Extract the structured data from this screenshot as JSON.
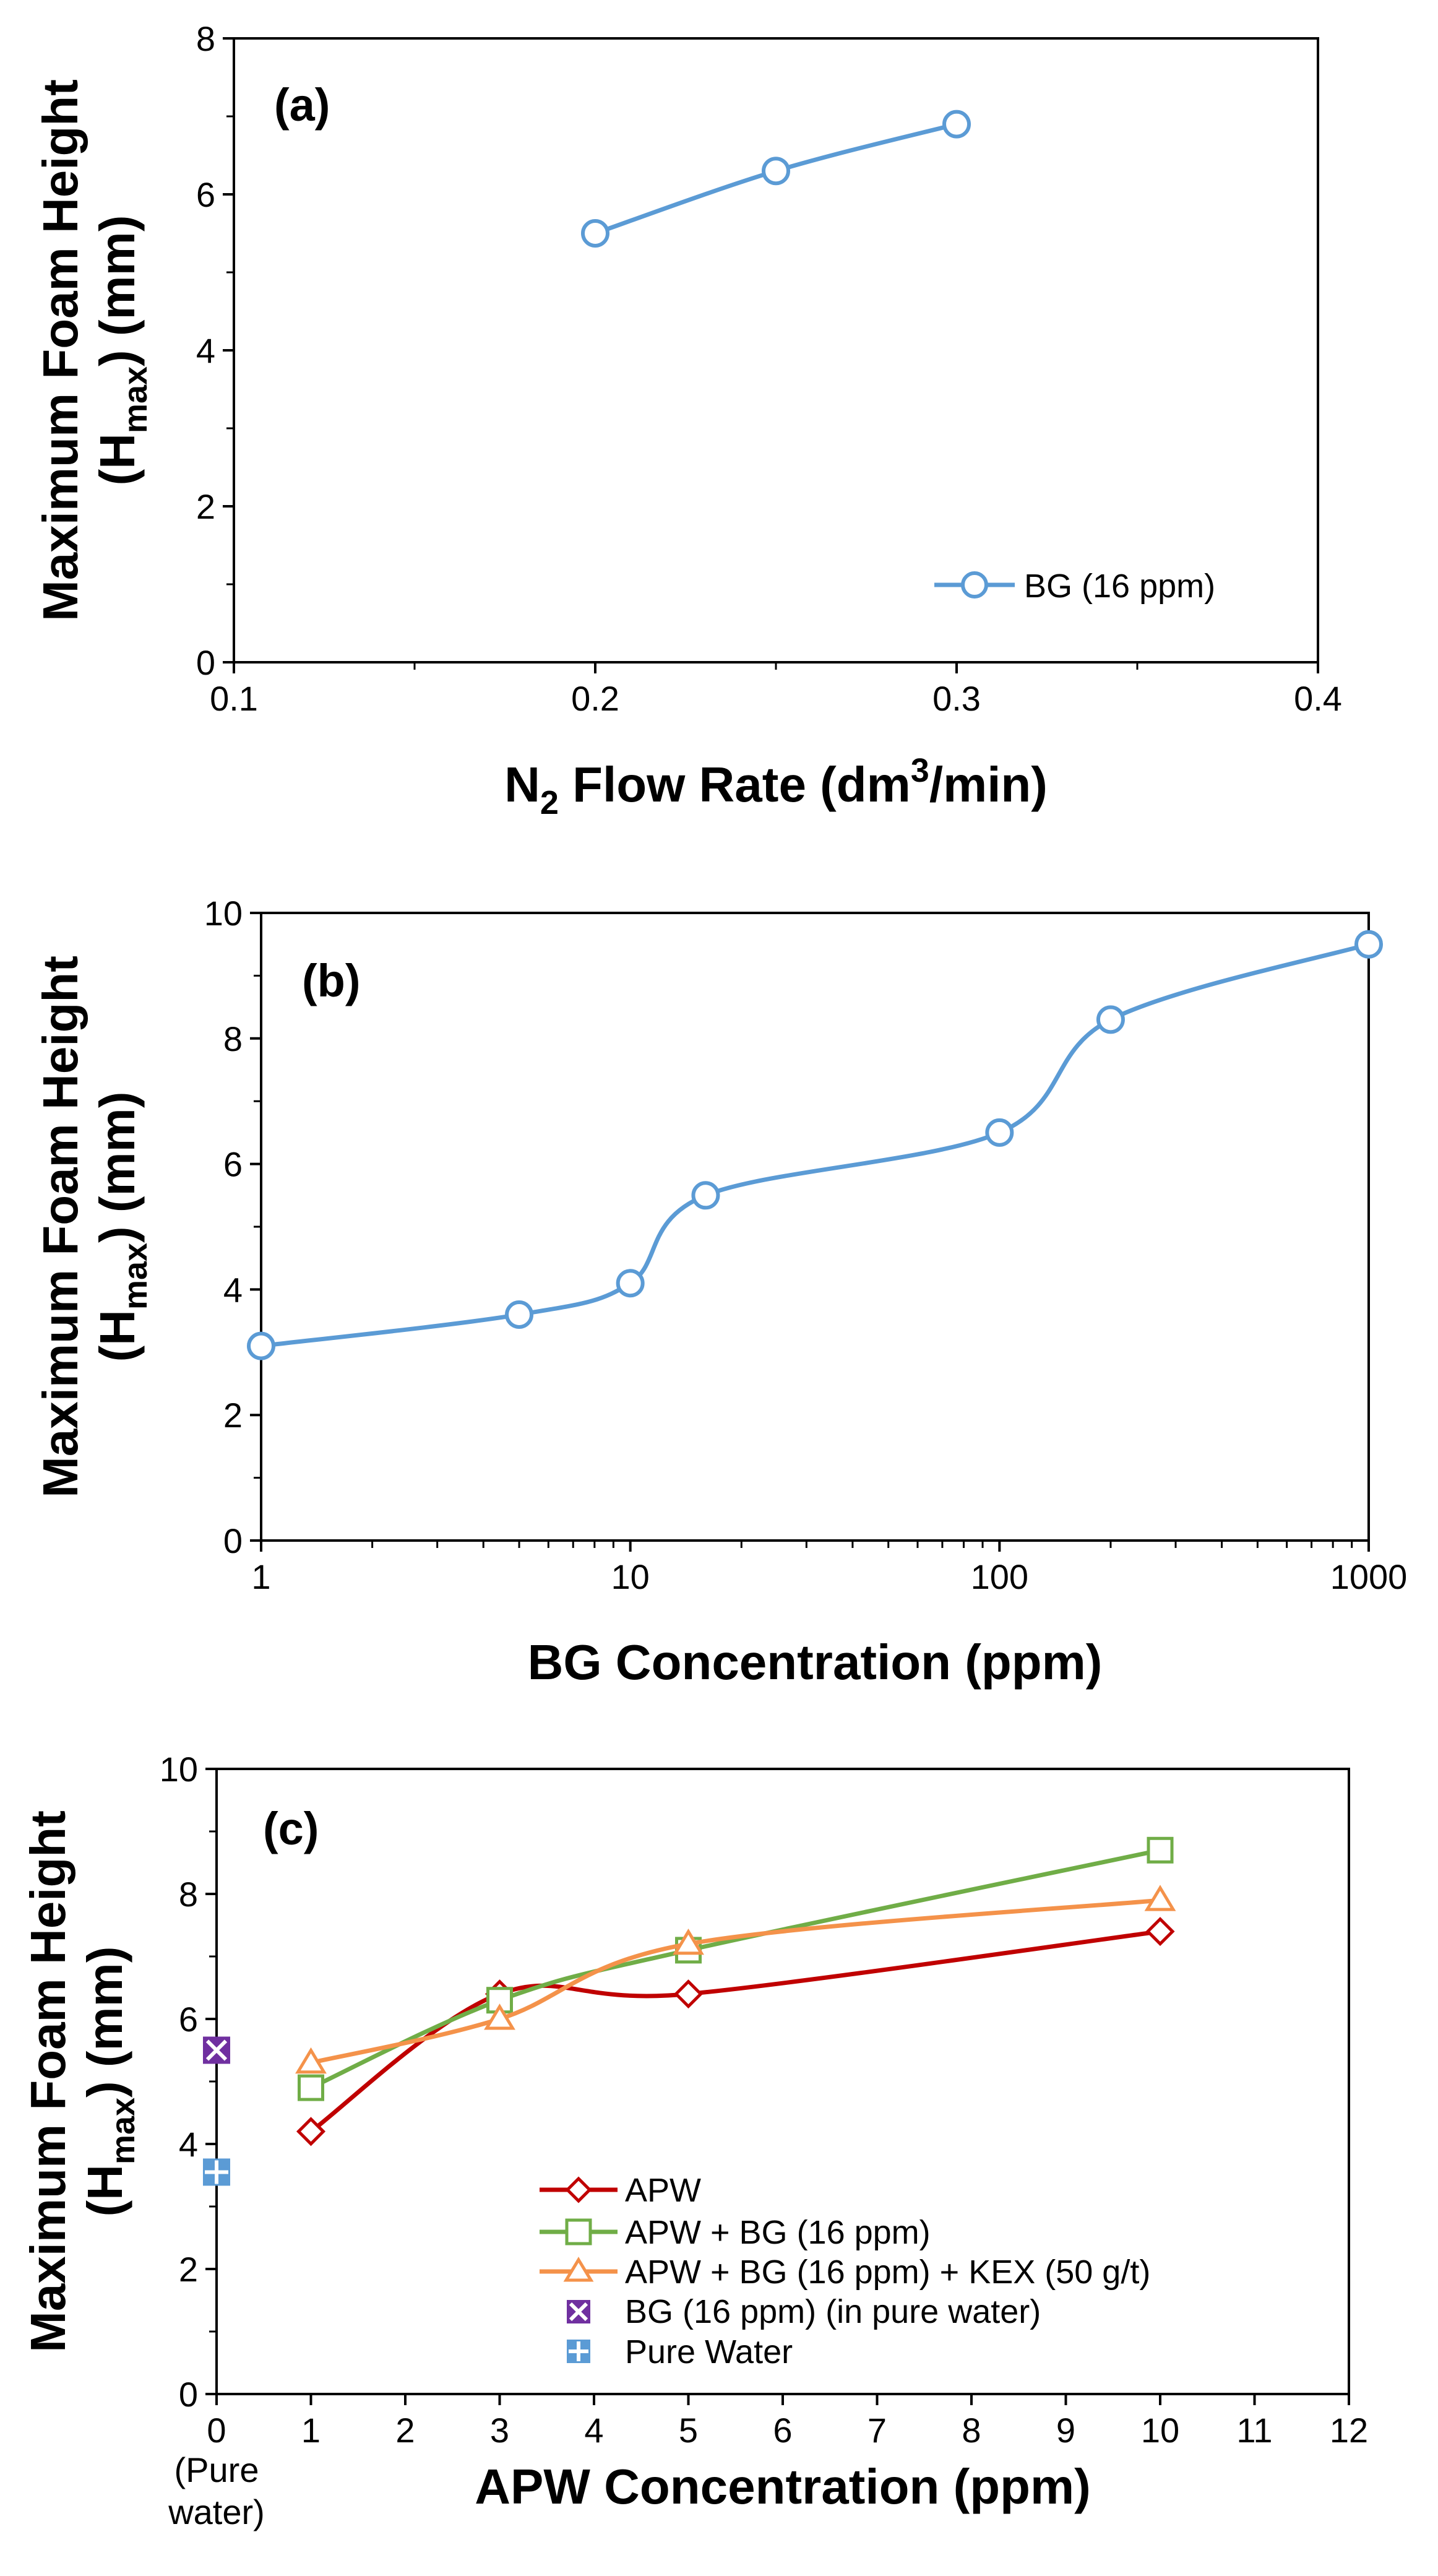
{
  "chart_data": [
    {
      "type": "line",
      "panel": "a",
      "title": "(a)",
      "xlabel": "N2 Flow Rate (dm3/min)",
      "xlabel_parts": {
        "a": "N",
        "b": "2",
        "c": " Flow Rate (dm",
        "d": "3",
        "e": "/min)"
      },
      "ylabel_line1": "Maximum Foam Height",
      "ylabel_line2": {
        "a": "(H",
        "b": "max",
        "c": ") (mm)"
      },
      "xlim": [
        0.1,
        0.4
      ],
      "ylim": [
        0,
        8
      ],
      "x_ticks": [
        0.1,
        0.2,
        0.3,
        0.4
      ],
      "x_tick_labels": [
        "0.1",
        "0.2",
        "0.3",
        "0.4"
      ],
      "y_ticks": [
        0,
        2,
        4,
        6,
        8
      ],
      "y_tick_labels": [
        "0",
        "2",
        "4",
        "6",
        "8"
      ],
      "legend_position": "bottom-right",
      "series": [
        {
          "name": "BG (16 ppm)",
          "color": "#5B9BD5",
          "marker": "circle",
          "x": [
            0.2,
            0.25,
            0.3
          ],
          "values": [
            5.5,
            6.3,
            6.9
          ]
        }
      ]
    },
    {
      "type": "line",
      "panel": "b",
      "title": "(b)",
      "xscale": "log",
      "xlabel": "BG Concentration (ppm)",
      "ylabel_line1": "Maximum Foam Height",
      "ylabel_line2": {
        "a": "(H",
        "b": "max",
        "c": ") (mm)"
      },
      "xlim": [
        1,
        1000
      ],
      "ylim": [
        0,
        10
      ],
      "x_ticks": [
        1,
        10,
        100,
        1000
      ],
      "x_tick_labels": [
        "1",
        "10",
        "100",
        "1000"
      ],
      "y_ticks": [
        0,
        2,
        4,
        6,
        8,
        10
      ],
      "y_tick_labels": [
        "0",
        "2",
        "4",
        "6",
        "8",
        "10"
      ],
      "series": [
        {
          "name": "BG",
          "color": "#5B9BD5",
          "marker": "circle",
          "x": [
            1,
            5,
            10,
            16,
            100,
            200,
            1000
          ],
          "values": [
            3.1,
            3.6,
            4.1,
            5.5,
            6.5,
            8.3,
            9.5
          ]
        }
      ]
    },
    {
      "type": "line",
      "panel": "c",
      "title": "(c)",
      "xlabel": "APW Concentration (ppm)",
      "x_note": [
        "(Pure",
        "water)"
      ],
      "ylabel_line1": "Maximum Foam Height",
      "ylabel_line2": {
        "a": "(H",
        "b": "max",
        "c": ") (mm)"
      },
      "xlim": [
        0,
        12
      ],
      "ylim": [
        0,
        10
      ],
      "x_ticks": [
        0,
        1,
        2,
        3,
        4,
        5,
        6,
        7,
        8,
        9,
        10,
        11,
        12
      ],
      "x_tick_labels": [
        "0",
        "1",
        "2",
        "3",
        "4",
        "5",
        "6",
        "7",
        "8",
        "9",
        "10",
        "11",
        "12"
      ],
      "y_ticks": [
        0,
        2,
        4,
        6,
        8,
        10
      ],
      "y_tick_labels": [
        "0",
        "2",
        "4",
        "6",
        "8",
        "10"
      ],
      "legend_position": "bottom-center",
      "series": [
        {
          "name": "APW",
          "color": "#C00000",
          "marker": "diamond",
          "x": [
            1,
            3,
            5,
            10
          ],
          "values": [
            4.2,
            6.4,
            6.4,
            7.4
          ]
        },
        {
          "name": "APW + BG (16 ppm)",
          "color": "#70AD47",
          "marker": "square",
          "x": [
            1,
            3,
            5,
            10
          ],
          "values": [
            4.9,
            6.3,
            7.1,
            8.7
          ]
        },
        {
          "name": "APW + BG (16 ppm) + KEX (50 g/t)",
          "color": "#F4924A",
          "marker": "triangle",
          "x": [
            1,
            3,
            5,
            10
          ],
          "values": [
            5.3,
            6.0,
            7.2,
            7.9
          ]
        },
        {
          "name": "BG (16 ppm) (in pure water)",
          "color": "#7030A0",
          "marker": "x-square",
          "x": [
            0
          ],
          "values": [
            5.5
          ]
        },
        {
          "name": "Pure Water",
          "color": "#5B9BD5",
          "marker": "plus-square",
          "x": [
            0
          ],
          "values": [
            3.55
          ]
        }
      ]
    }
  ]
}
